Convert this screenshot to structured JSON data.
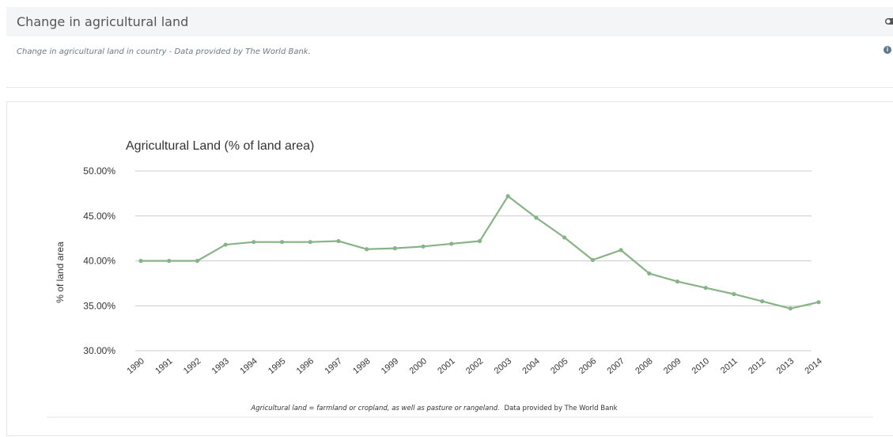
{
  "panel": {
    "title": "Change in agricultural land",
    "description": "Change in agricultural land in country - Data provided by The World Bank.",
    "toggle_icon": "toggle-icon",
    "info_icon": "info-icon",
    "info_glyph": "i"
  },
  "chart_data": {
    "type": "line",
    "title": "Agricultural Land (% of land area)",
    "xlabel": "",
    "ylabel": "% of land area",
    "ylim": [
      30,
      50
    ],
    "y_ticks": [
      30,
      35,
      40,
      45,
      50
    ],
    "y_tick_labels": [
      "30.00%",
      "35.00%",
      "40.00%",
      "45.00%",
      "50.00%"
    ],
    "grid": true,
    "line_color": "#87b487",
    "categories": [
      "1990",
      "1991",
      "1992",
      "1993",
      "1994",
      "1995",
      "1996",
      "1997",
      "1998",
      "1999",
      "2000",
      "2001",
      "2002",
      "2003",
      "2004",
      "2005",
      "2006",
      "2007",
      "2008",
      "2009",
      "2010",
      "2011",
      "2012",
      "2013",
      "2014"
    ],
    "series": [
      {
        "values": [
          40.0,
          40.0,
          40.0,
          41.8,
          42.1,
          42.1,
          42.1,
          42.2,
          41.3,
          41.4,
          41.6,
          41.9,
          42.2,
          47.2,
          44.8,
          42.6,
          40.1,
          41.2,
          38.6,
          37.7,
          37.0,
          36.3,
          35.5,
          34.7,
          35.4
        ]
      }
    ],
    "footnote_italic": "Agricultural land = farmland or cropland, as well as pasture or rangeland.",
    "footnote_plain": "Data provided by The World Bank"
  }
}
